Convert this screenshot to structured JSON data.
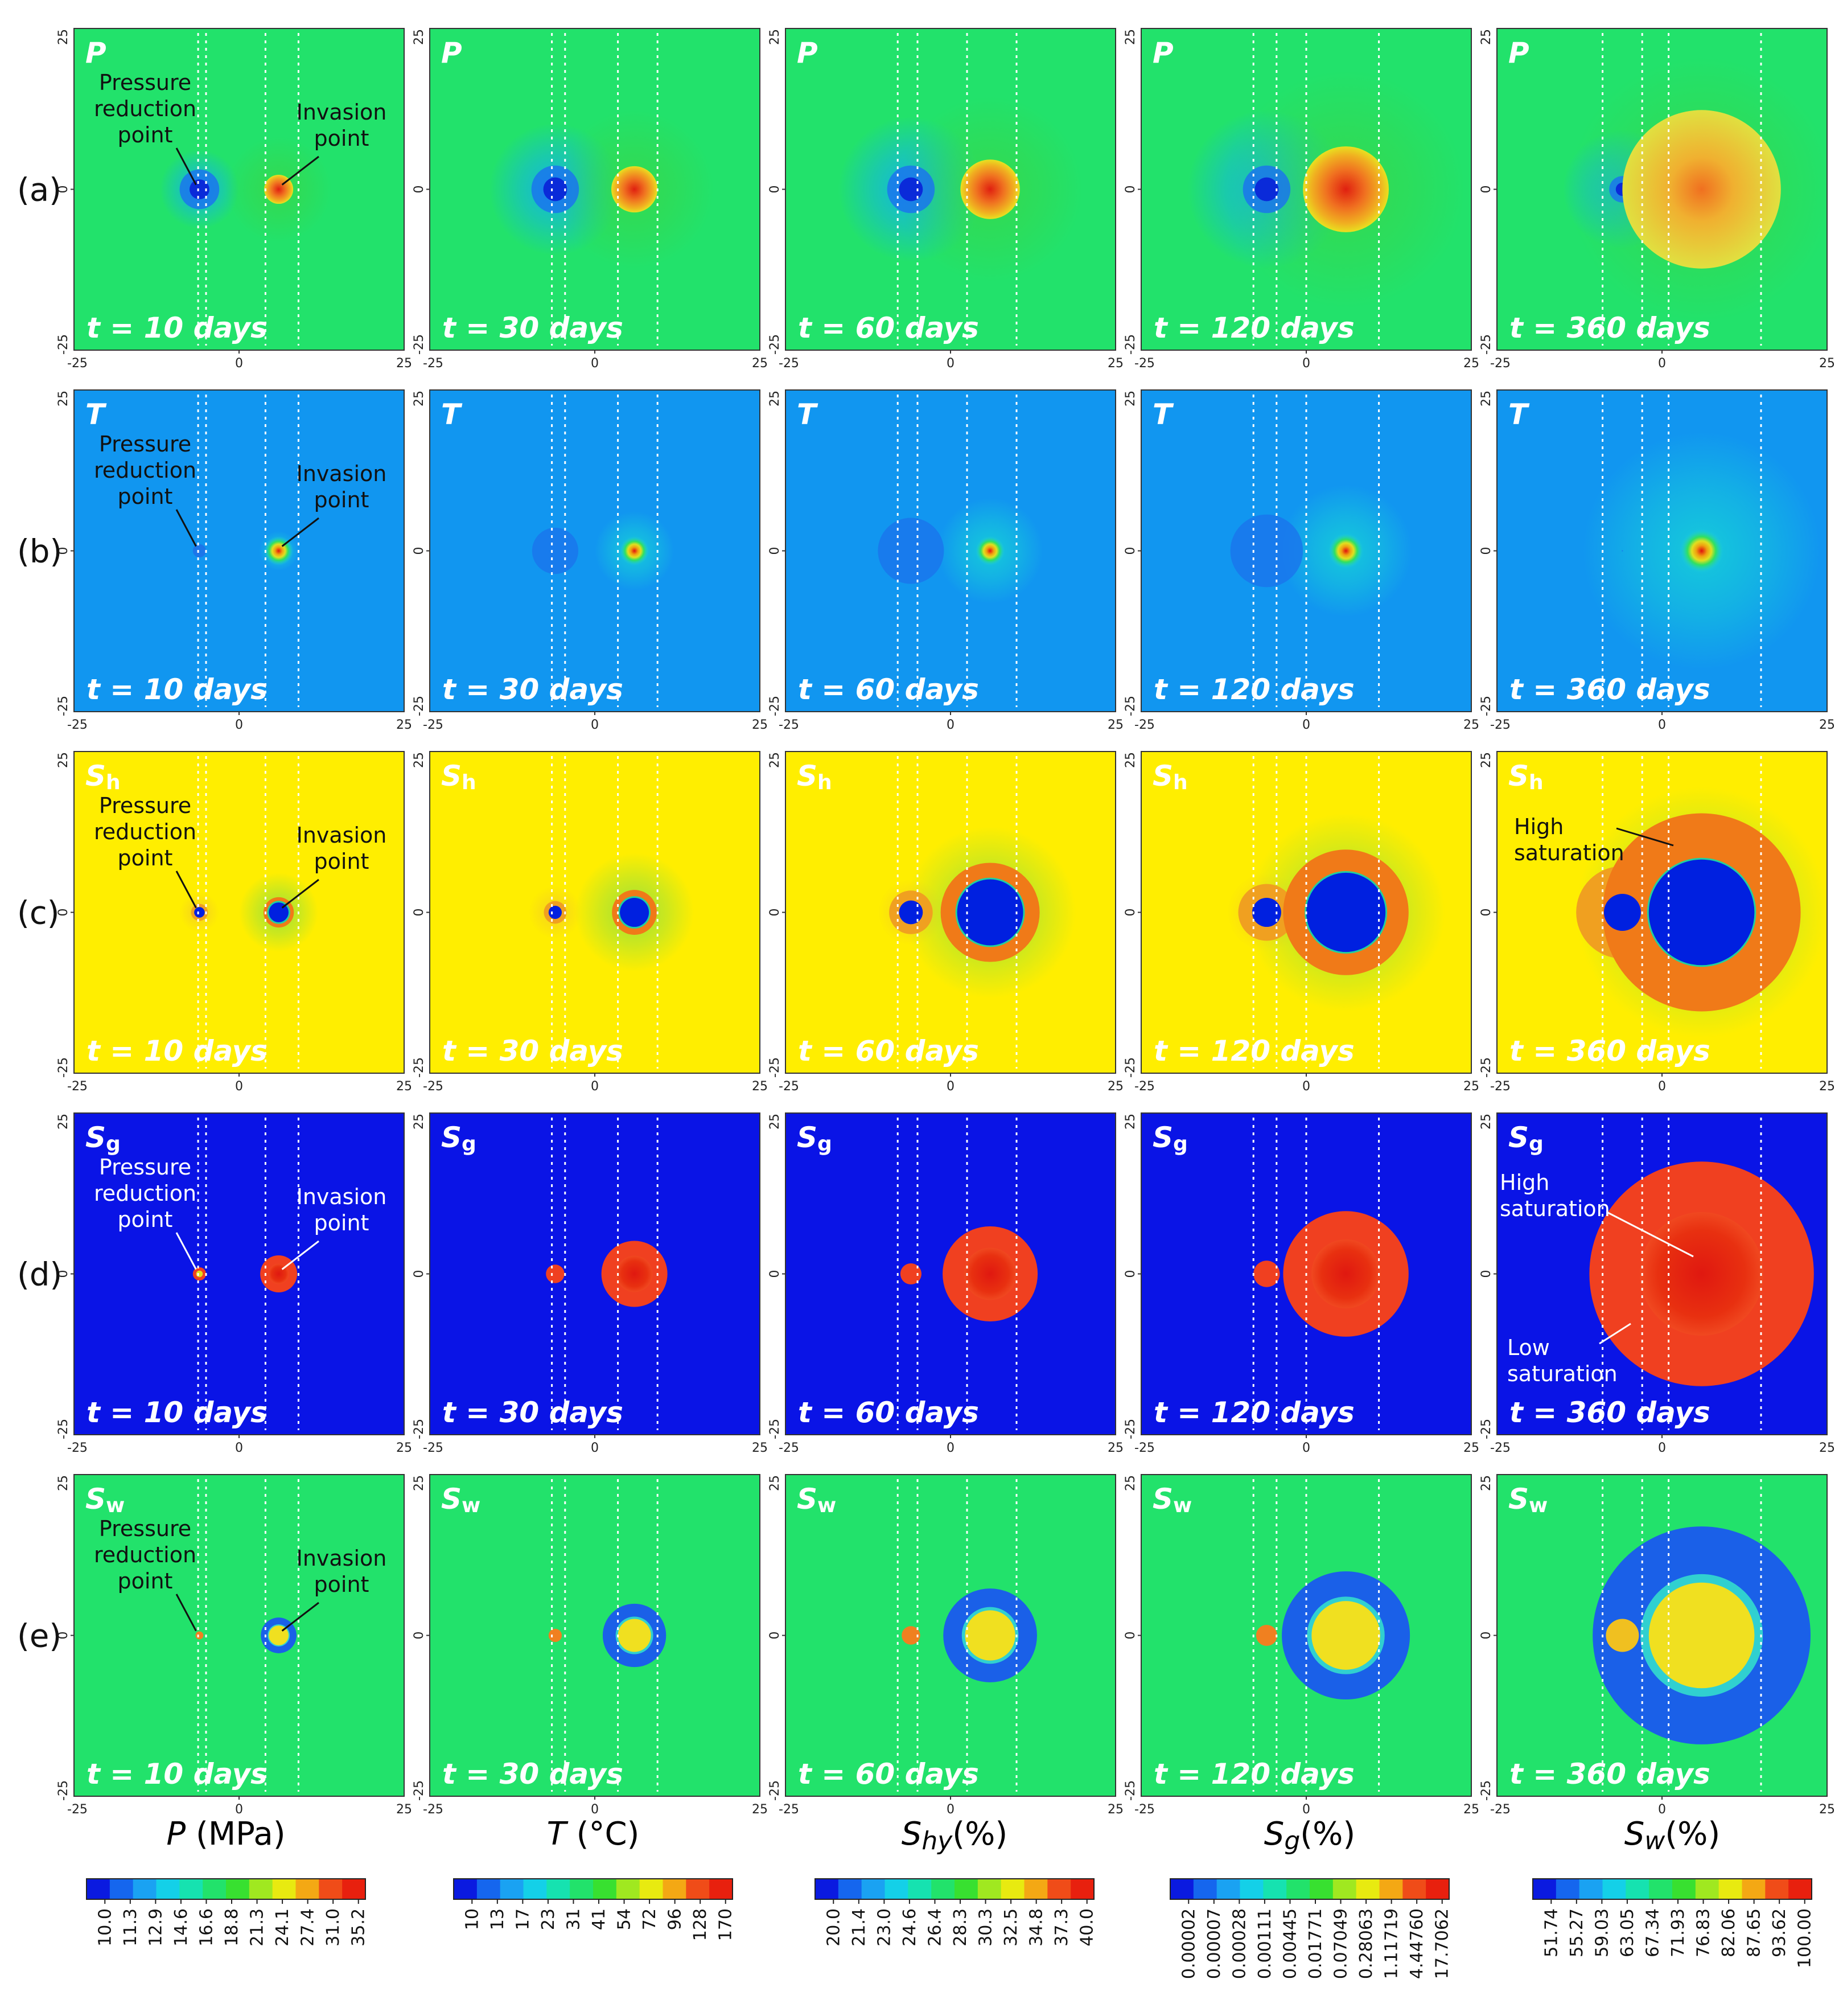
{
  "chart_data": {
    "type": "heatmap",
    "title": "",
    "xlabel": "",
    "ylabel": "",
    "axis": {
      "xlim": [
        -25,
        25
      ],
      "ylim": [
        -25,
        25
      ],
      "x_ticks": [
        "-25",
        "0",
        "25"
      ],
      "y_ticks": [
        "25",
        "0",
        "-25"
      ]
    },
    "times": [
      10,
      30,
      60,
      120,
      360
    ],
    "time_labels": [
      "t = 10 days",
      "t = 30 days",
      "t = 60 days",
      "t = 120 days",
      "t = 360 days"
    ],
    "pressure_reduction_point_x": -6,
    "invasion_point_x": 6,
    "guide_lines_x": [
      [
        -6.2,
        -5.0,
        4.0,
        9.0
      ],
      [
        -6.5,
        -4.5,
        3.5,
        9.5
      ],
      [
        -8.0,
        -5.0,
        2.5,
        10.0
      ],
      [
        -8.0,
        -4.5,
        0.0,
        11.0
      ],
      [
        -9.0,
        -3.0,
        1.0,
        15.0
      ]
    ],
    "rows": [
      {
        "row_label": "(a)",
        "var_label": "P",
        "var_sub": "",
        "background": "#22e26b",
        "annotations": [
          {
            "lines": [
              "Pressure",
              "reduction",
              "point"
            ],
            "color": "black"
          },
          {
            "lines": [
              "Invasion",
              "point"
            ],
            "color": "black"
          }
        ],
        "panels": [
          {
            "sink": {
              "r": 1.5,
              "color": "#0a2ad9"
            },
            "inv": {
              "r": 2.2,
              "color": "#f05018"
            },
            "glow_sink": 6,
            "glow_inv": 8
          },
          {
            "sink": {
              "r": 1.8,
              "color": "#0a2ad9"
            },
            "inv": {
              "r": 3.5,
              "color": "#f05018"
            },
            "glow_sink": 10,
            "glow_inv": 12
          },
          {
            "sink": {
              "r": 1.8,
              "color": "#0a2ad9"
            },
            "inv": {
              "r": 4.5,
              "color": "#f05018"
            },
            "glow_sink": 11,
            "glow_inv": 14
          },
          {
            "sink": {
              "r": 1.8,
              "color": "#0a2ad9"
            },
            "inv": {
              "r": 6.5,
              "color": "#f07020"
            },
            "glow_sink": 12,
            "glow_inv": 18
          },
          {
            "sink": {
              "r": 1.0,
              "color": "#0a2ad9"
            },
            "inv": {
              "r": 12.0,
              "color": "#e0c020"
            },
            "glow_sink": 9,
            "glow_inv": 20
          }
        ]
      },
      {
        "row_label": "(b)",
        "var_label": "T",
        "var_sub": "",
        "background": "#1196f0",
        "annotations": [
          {
            "lines": [
              "Pressure",
              "reduction",
              "point"
            ],
            "color": "black"
          },
          {
            "lines": [
              "Invasion",
              "point"
            ],
            "color": "black"
          }
        ],
        "panels": [
          {
            "sink": {
              "r": 1.0,
              "color": "#1f6ee8"
            },
            "inv": {
              "r": 1.0,
              "color": "#e83010"
            },
            "glow_sink": 0,
            "glow_inv": 3
          },
          {
            "sink": {
              "r": 3.5,
              "color": "#1a74ec"
            },
            "inv": {
              "r": 1.0,
              "color": "#e83010"
            },
            "glow_sink": 0,
            "glow_inv": 6
          },
          {
            "sink": {
              "r": 5.0,
              "color": "#1a74ec"
            },
            "inv": {
              "r": 1.0,
              "color": "#e83010"
            },
            "glow_sink": 0,
            "glow_inv": 8
          },
          {
            "sink": {
              "r": 5.5,
              "color": "#1a74ec"
            },
            "inv": {
              "r": 1.2,
              "color": "#e83010"
            },
            "glow_sink": 0,
            "glow_inv": 10
          },
          {
            "sink": {
              "r": 0.1,
              "color": "#1a74ec"
            },
            "inv": {
              "r": 1.5,
              "color": "#e83010"
            },
            "glow_sink": 0,
            "glow_inv": 18
          }
        ]
      },
      {
        "row_label": "(c)",
        "var_label": "S",
        "var_sub": "h",
        "background": "#ffee00",
        "annotations": [
          {
            "lines": [
              "Pressure",
              "reduction",
              "point"
            ],
            "color": "black"
          },
          {
            "lines": [
              "Invasion",
              "point"
            ],
            "color": "black"
          },
          {
            "lines": [
              "High",
              "saturation"
            ],
            "color": "black"
          }
        ],
        "panels": [
          {
            "sink": {
              "r": 0.8,
              "color": "#0020e0"
            },
            "inv": {
              "r": 1.5,
              "color": "#0020e0"
            },
            "ring": 0.8,
            "glow_sink": 3,
            "glow_inv": 6
          },
          {
            "sink": {
              "r": 1.0,
              "color": "#0020e0"
            },
            "inv": {
              "r": 2.2,
              "color": "#0020e0"
            },
            "ring": 1.2,
            "glow_sink": 4,
            "glow_inv": 9
          },
          {
            "sink": {
              "r": 1.8,
              "color": "#0020e0"
            },
            "inv": {
              "r": 5.0,
              "color": "#0020e0"
            },
            "ring": 2.5,
            "glow_sink": 5,
            "glow_inv": 13
          },
          {
            "sink": {
              "r": 2.2,
              "color": "#0020e0"
            },
            "inv": {
              "r": 6.0,
              "color": "#0020e0"
            },
            "ring": 3.5,
            "glow_sink": 6,
            "glow_inv": 15
          },
          {
            "sink": {
              "r": 2.8,
              "color": "#0020e0"
            },
            "inv": {
              "r": 8.0,
              "color": "#0020e0"
            },
            "ring": 7.0,
            "glow_sink": 6,
            "glow_inv": 19
          }
        ]
      },
      {
        "row_label": "(d)",
        "var_label": "S",
        "var_sub": "g",
        "background": "#0a14e6",
        "annotations": [
          {
            "lines": [
              "Pressure",
              "reduction",
              "point"
            ],
            "color": "white"
          },
          {
            "lines": [
              "Invasion",
              "point"
            ],
            "color": "white"
          },
          {
            "lines": [
              "High",
              "saturation"
            ],
            "color": "white"
          },
          {
            "lines": [
              "Low",
              "saturation"
            ],
            "color": "white"
          }
        ],
        "panels": [
          {
            "sink": {
              "r": 1.0,
              "color": "#f04020"
            },
            "inv": {
              "r": 2.8,
              "color": "#f04020"
            }
          },
          {
            "sink": {
              "r": 1.4,
              "color": "#f04020"
            },
            "inv": {
              "r": 5.0,
              "color": "#f04020"
            }
          },
          {
            "sink": {
              "r": 1.6,
              "color": "#f04020"
            },
            "inv": {
              "r": 7.2,
              "color": "#f04020"
            }
          },
          {
            "sink": {
              "r": 2.0,
              "color": "#f04020"
            },
            "inv": {
              "r": 9.5,
              "color": "#f04020"
            }
          },
          {
            "sink": {
              "r": 2.5,
              "color": "#f04020"
            },
            "inv": {
              "r": 17.0,
              "color": "#f04020"
            }
          }
        ]
      },
      {
        "row_label": "(e)",
        "var_label": "S",
        "var_sub": "w",
        "background": "#22e26b",
        "annotations": [
          {
            "lines": [
              "Pressure",
              "reduction",
              "point"
            ],
            "color": "black"
          },
          {
            "lines": [
              "Invasion",
              "point"
            ],
            "color": "black"
          }
        ],
        "panels": [
          {
            "sink": {
              "r": 0.6,
              "color": "#f08020"
            },
            "inv": {
              "r": 1.5,
              "color": "#f0e020"
            },
            "ring": 1.2
          },
          {
            "sink": {
              "r": 1.0,
              "color": "#f08020"
            },
            "inv": {
              "r": 2.5,
              "color": "#f0e020"
            },
            "ring": 2.3
          },
          {
            "sink": {
              "r": 1.4,
              "color": "#f08020"
            },
            "inv": {
              "r": 3.8,
              "color": "#f0e020"
            },
            "ring": 3.3
          },
          {
            "sink": {
              "r": 1.6,
              "color": "#f08020"
            },
            "inv": {
              "r": 5.2,
              "color": "#f0e020"
            },
            "ring": 4.5
          },
          {
            "sink": {
              "r": 2.5,
              "color": "#f0c020"
            },
            "inv": {
              "r": 8.0,
              "color": "#f0e020"
            },
            "ring": 8.5
          }
        ]
      }
    ],
    "colorbars": [
      {
        "title_main": "P",
        "title_unit": " (MPa)",
        "title_sub": "",
        "ticks": [
          "10.0",
          "11.3",
          "12.9",
          "14.6",
          "16.6",
          "18.8",
          "21.3",
          "24.1",
          "27.4",
          "31.0",
          "35.2"
        ]
      },
      {
        "title_main": "T",
        "title_unit": " (°C)",
        "title_sub": "",
        "ticks": [
          "10",
          "13",
          "17",
          "23",
          "31",
          "41",
          "54",
          "72",
          "96",
          "128",
          "170"
        ]
      },
      {
        "title_main": "S",
        "title_unit": "(%)",
        "title_sub": "hy",
        "ticks": [
          "20.0",
          "21.4",
          "23.0",
          "24.6",
          "26.4",
          "28.3",
          "30.3",
          "32.5",
          "34.8",
          "37.3",
          "40.0"
        ]
      },
      {
        "title_main": "S",
        "title_unit": "(%)",
        "title_sub": "g",
        "ticks": [
          "0.00002",
          "0.00007",
          "0.00028",
          "0.00111",
          "0.00445",
          "0.01771",
          "0.07049",
          "0.28063",
          "1.11719",
          "4.44760",
          "17.7062"
        ]
      },
      {
        "title_main": "S",
        "title_unit": "(%)",
        "title_sub": "w",
        "ticks": [
          "51.74",
          "55.27",
          "59.03",
          "63.05",
          "67.34",
          "71.93",
          "76.83",
          "82.06",
          "87.65",
          "93.62",
          "100.00"
        ]
      }
    ],
    "colorbar_colors": [
      "#0a1ae0",
      "#1566ee",
      "#1aa2f2",
      "#14d0e8",
      "#16e2b0",
      "#22e26b",
      "#38e030",
      "#a0e820",
      "#e8ea10",
      "#f4a814",
      "#f04c18",
      "#e8200e"
    ]
  }
}
